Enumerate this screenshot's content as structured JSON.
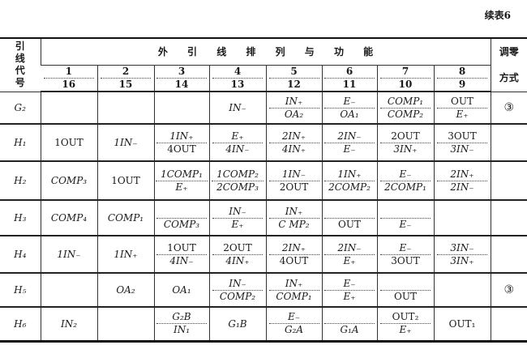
{
  "caption": "续表6",
  "header": {
    "row_label": "引线代号",
    "title": "外 引 线 排 列 与 功 能",
    "zero_label": "调零方式",
    "pins": [
      {
        "top": "1",
        "bottom": "16"
      },
      {
        "top": "2",
        "bottom": "15"
      },
      {
        "top": "3",
        "bottom": "14"
      },
      {
        "top": "4",
        "bottom": "13"
      },
      {
        "top": "5",
        "bottom": "12"
      },
      {
        "top": "6",
        "bottom": "11"
      },
      {
        "top": "7",
        "bottom": "10"
      },
      {
        "top": "8",
        "bottom": "9"
      }
    ]
  },
  "rows": [
    {
      "label": "G₂",
      "zero": "③",
      "cells": [
        {
          "t": ""
        },
        {
          "t": ""
        },
        {
          "t": ""
        },
        {
          "t": "IN₋"
        },
        {
          "top": "IN₊",
          "bottom": "OA₂"
        },
        {
          "top": "E₋",
          "bottom": "OA₁"
        },
        {
          "top": "COMP₁",
          "bottom": "COMP₂"
        },
        {
          "top": "OUT",
          "bottom": "E₊"
        }
      ]
    },
    {
      "label": "H₁",
      "zero": "",
      "cells": [
        {
          "t": "1OUT"
        },
        {
          "t": "1IN₋"
        },
        {
          "top": "1IN₊",
          "bottom": "4OUT"
        },
        {
          "top": "E₊",
          "bottom": "4IN₋"
        },
        {
          "top": "2IN₊",
          "bottom": "4IN₊"
        },
        {
          "top": "2IN₋",
          "bottom": "E₋"
        },
        {
          "top": "2OUT",
          "bottom": "3IN₊"
        },
        {
          "top": "3OUT",
          "bottom": "3IN₋"
        }
      ]
    },
    {
      "label": "H₂",
      "zero": "",
      "cells": [
        {
          "t": "COMP₃"
        },
        {
          "t": "1OUT"
        },
        {
          "top": "1COMP₁",
          "bottom": "E₊"
        },
        {
          "top": "1COMP₂",
          "bottom": "2COMP₃"
        },
        {
          "top": "1IN₋",
          "bottom": "2OUT"
        },
        {
          "top": "1IN₊",
          "bottom": "2COMP₂"
        },
        {
          "top": "E₋",
          "bottom": "2COMP₁"
        },
        {
          "top": "2IN₊",
          "bottom": "2IN₋"
        }
      ]
    },
    {
      "label": "H₃",
      "zero": "",
      "cells": [
        {
          "t": "COMP₄"
        },
        {
          "t": "COMP₁"
        },
        {
          "top": "",
          "bottom": "COMP₃"
        },
        {
          "top": "IN₋",
          "bottom": "E₊"
        },
        {
          "top": "IN₊",
          "bottom": "C MP₂"
        },
        {
          "top": "",
          "bottom": "OUT"
        },
        {
          "top": "",
          "bottom": "E₋"
        },
        {
          "t": ""
        }
      ]
    },
    {
      "label": "H₄",
      "zero": "",
      "cells": [
        {
          "t": "1IN₋"
        },
        {
          "t": "1IN₊"
        },
        {
          "top": "1OUT",
          "bottom": "4IN₋"
        },
        {
          "top": "2OUT",
          "bottom": "4IN₊"
        },
        {
          "top": "2IN₊",
          "bottom": "4OUT"
        },
        {
          "top": "2IN₋",
          "bottom": "E₊"
        },
        {
          "top": "E₋",
          "bottom": "3OUT"
        },
        {
          "top": "3IN₋",
          "bottom": "3IN₊"
        }
      ]
    },
    {
      "label": "H₅",
      "zero": "③",
      "cells": [
        {
          "t": ""
        },
        {
          "t": "OA₂"
        },
        {
          "t": "OA₁"
        },
        {
          "top": "IN₋",
          "bottom": "COMP₂"
        },
        {
          "top": "IN₊",
          "bottom": "COMP₁"
        },
        {
          "top": "E₋",
          "bottom": "E₊"
        },
        {
          "top": "",
          "bottom": "OUT"
        },
        {
          "t": ""
        }
      ]
    },
    {
      "label": "H₆",
      "zero": "",
      "cells": [
        {
          "t": "IN₂"
        },
        {
          "t": ""
        },
        {
          "top": "G₂B",
          "bottom": "IN₁"
        },
        {
          "t": "G₁B"
        },
        {
          "top": "E₋",
          "bottom": "G₂A"
        },
        {
          "top": "",
          "bottom": "G₁A"
        },
        {
          "top": "OUT₂",
          "bottom": "E₊"
        },
        {
          "t": "OUT₁"
        }
      ]
    }
  ]
}
